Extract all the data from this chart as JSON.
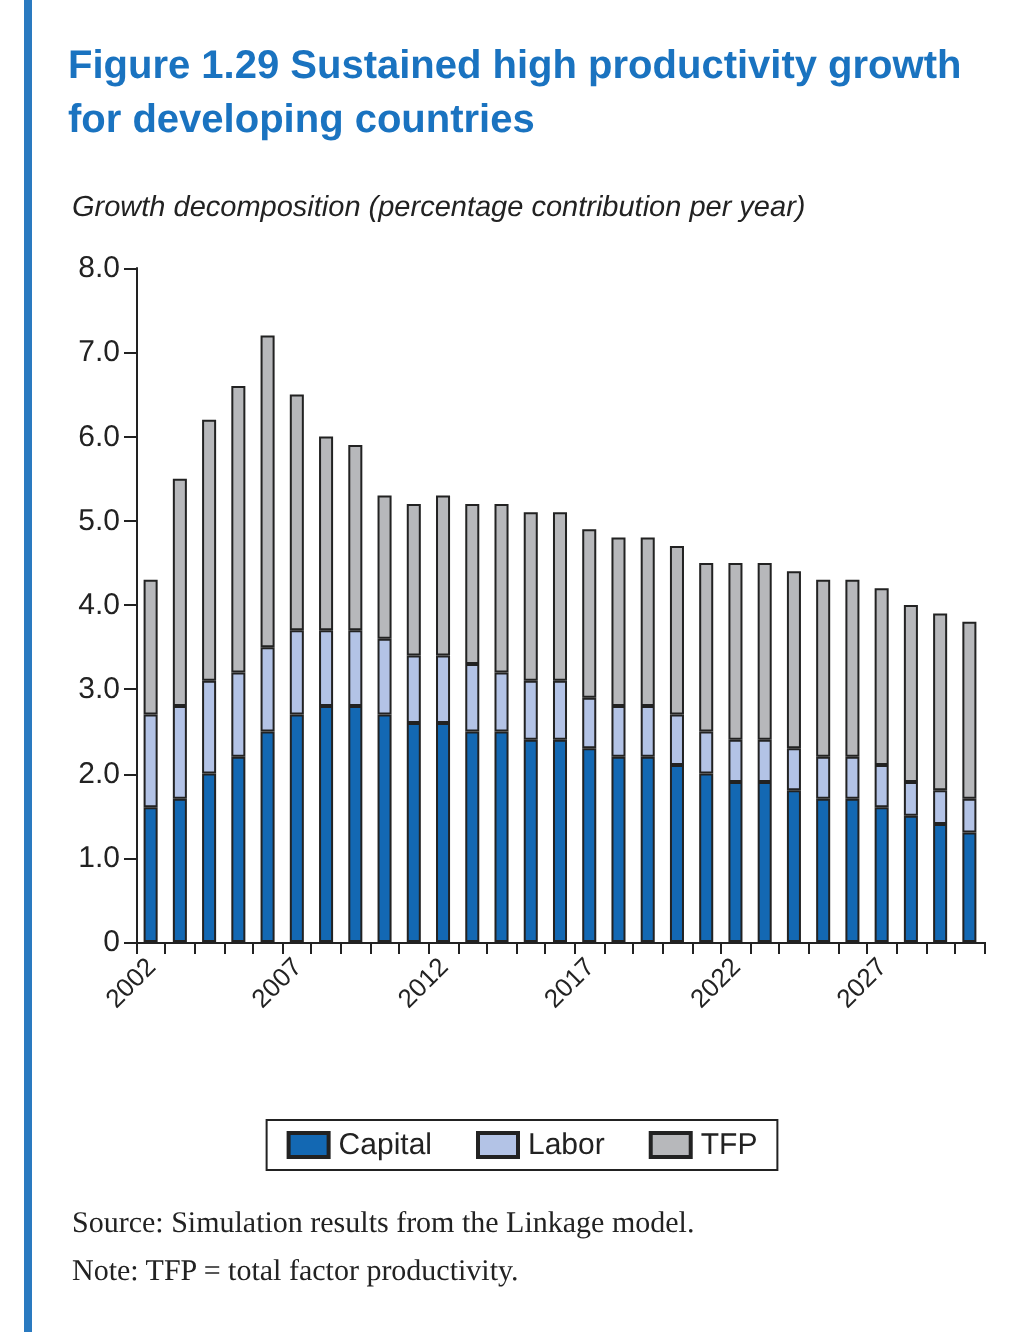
{
  "chart_data": {
    "type": "bar",
    "title": "Figure 1.29  Sustained high productivity growth for developing countries",
    "subtitle": "Growth decomposition (percentage contribution per year)",
    "categories": [
      "2002",
      null,
      null,
      null,
      null,
      "2007",
      null,
      null,
      null,
      null,
      "2012",
      null,
      null,
      null,
      null,
      "2017",
      null,
      null,
      null,
      null,
      "2022",
      null,
      null,
      null,
      null,
      "2027",
      null,
      null,
      null
    ],
    "stacked": true,
    "series": [
      {
        "name": "Capital",
        "color": "#1368b3",
        "values": [
          1.6,
          1.7,
          2.0,
          2.2,
          2.5,
          2.7,
          2.8,
          2.8,
          2.7,
          2.6,
          2.6,
          2.5,
          2.5,
          2.4,
          2.4,
          2.3,
          2.2,
          2.2,
          2.1,
          2.0,
          1.9,
          1.9,
          1.8,
          1.7,
          1.7,
          1.6,
          1.5,
          1.4,
          1.3
        ]
      },
      {
        "name": "Labor",
        "color": "#b3c3e6",
        "values": [
          1.1,
          1.1,
          1.1,
          1.0,
          1.0,
          1.0,
          0.9,
          0.9,
          0.9,
          0.8,
          0.8,
          0.8,
          0.7,
          0.7,
          0.7,
          0.6,
          0.6,
          0.6,
          0.6,
          0.5,
          0.5,
          0.5,
          0.5,
          0.5,
          0.5,
          0.5,
          0.4,
          0.4,
          0.4
        ]
      },
      {
        "name": "TFP",
        "color": "#b7b8bb",
        "values": [
          1.6,
          2.7,
          3.1,
          3.4,
          3.7,
          2.8,
          2.3,
          2.2,
          1.7,
          1.8,
          1.9,
          1.9,
          2.0,
          2.0,
          2.0,
          2.0,
          2.0,
          2.0,
          2.0,
          2.0,
          2.1,
          2.1,
          2.1,
          2.1,
          2.1,
          2.1,
          2.1,
          2.1,
          2.1
        ]
      }
    ],
    "ylim": [
      0,
      8
    ],
    "yticks": [
      0,
      {
        "value": 1,
        "label": "1.0"
      },
      {
        "value": 2,
        "label": "2.0"
      },
      {
        "value": 3,
        "label": "3.0"
      },
      {
        "value": 4,
        "label": "4.0"
      },
      {
        "value": 5,
        "label": "5.0"
      },
      {
        "value": 6,
        "label": "6.0"
      },
      {
        "value": 7,
        "label": "7.0"
      },
      {
        "value": 8,
        "label": "8.0"
      }
    ],
    "grid": false,
    "legend": "bottom",
    "annotations": [
      "Source: Simulation results from the Linkage model.",
      "Note: TFP = total factor productivity."
    ]
  }
}
